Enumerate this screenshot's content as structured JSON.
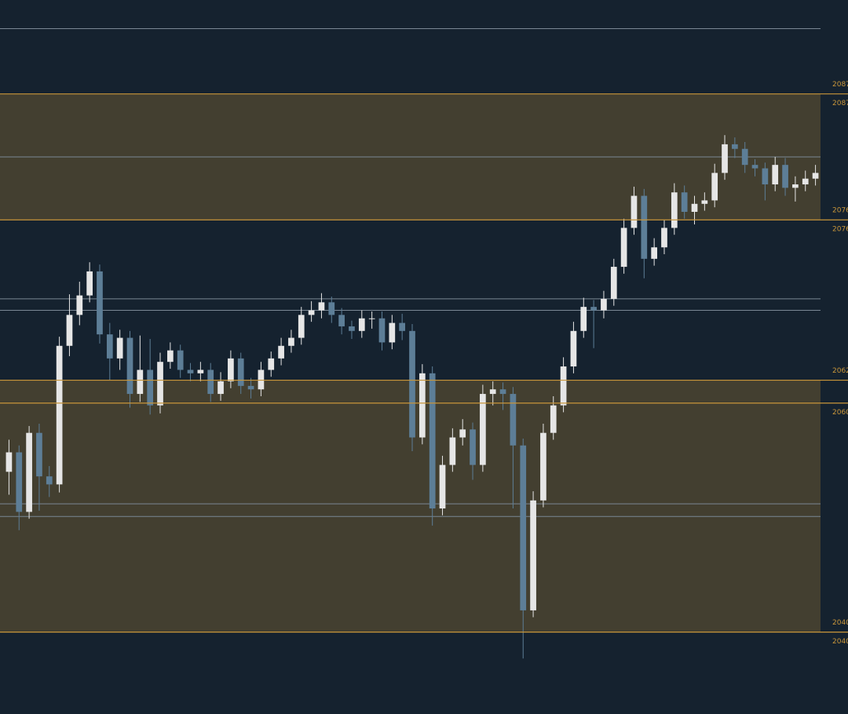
{
  "chart_data": {
    "type": "candlestick",
    "ylim": [
      2032.85,
      2095.2
    ],
    "colors": {
      "background": "#15222f",
      "up": "#e6e6e6",
      "down": "#5d7e97",
      "zone": "#433f30",
      "level": "#c9963a",
      "line": "#7b8894"
    },
    "zones": [
      {
        "top": 2087,
        "bottom": 2076
      },
      {
        "top": 2062,
        "bottom": 2040
      }
    ],
    "levels": [
      {
        "value": 2087,
        "label_sides": [
          "above",
          "below"
        ]
      },
      {
        "value": 2076,
        "label_sides": [
          "above",
          "below"
        ]
      },
      {
        "value": 2062,
        "label_sides": [
          "above"
        ]
      },
      {
        "value": 2060,
        "label_sides": [
          "below"
        ]
      },
      {
        "value": 2040,
        "label_sides": [
          "above",
          "below"
        ]
      }
    ],
    "gray_lines": [
      2092.7,
      2081.5,
      2069.1,
      2068.1,
      2051.2,
      2050.1
    ],
    "candles": {
      "open": [
        2054.0,
        2055.7,
        2050.5,
        2057.4,
        2053.6,
        2052.9,
        2065.0,
        2067.7,
        2069.4,
        2071.5,
        2066.0,
        2063.9,
        2065.7,
        2060.8,
        2062.9,
        2059.8,
        2063.6,
        2064.6,
        2062.9,
        2062.6,
        2062.9,
        2060.8,
        2061.9,
        2063.9,
        2061.5,
        2061.2,
        2062.9,
        2063.9,
        2065.0,
        2065.7,
        2067.7,
        2068.1,
        2068.8,
        2067.7,
        2066.7,
        2066.3,
        2067.4,
        2067.4,
        2065.3,
        2067.0,
        2066.3,
        2057.0,
        2062.6,
        2050.8,
        2054.6,
        2057.0,
        2057.7,
        2054.6,
        2060.8,
        2061.2,
        2060.8,
        2056.3,
        2041.9,
        2051.5,
        2057.4,
        2059.8,
        2063.2,
        2066.3,
        2068.4,
        2068.1,
        2069.1,
        2071.9,
        2075.3,
        2078.1,
        2072.6,
        2073.6,
        2075.3,
        2078.4,
        2076.7,
        2077.4,
        2077.7,
        2080.1,
        2082.6,
        2082.2,
        2080.8,
        2080.5,
        2079.1,
        2080.8,
        2078.8,
        2079.1,
        2079.6
      ],
      "high": [
        2056.8,
        2056.3,
        2058.0,
        2058.2,
        2054.5,
        2065.8,
        2069.5,
        2070.6,
        2072.3,
        2072.1,
        2067.0,
        2066.4,
        2066.3,
        2065.9,
        2065.6,
        2064.4,
        2065.3,
        2065.1,
        2063.5,
        2063.6,
        2063.5,
        2062.7,
        2064.6,
        2064.4,
        2062.2,
        2063.6,
        2064.5,
        2065.7,
        2066.4,
        2068.4,
        2068.9,
        2069.6,
        2069.3,
        2068.3,
        2067.2,
        2068.1,
        2068.0,
        2068.0,
        2067.7,
        2067.8,
        2066.9,
        2063.4,
        2063.2,
        2055.4,
        2057.8,
        2058.6,
        2058.3,
        2061.6,
        2061.9,
        2061.8,
        2061.4,
        2056.9,
        2052.3,
        2058.2,
        2060.6,
        2064.0,
        2067.1,
        2069.2,
        2069.0,
        2069.8,
        2072.6,
        2076.1,
        2078.9,
        2078.7,
        2074.4,
        2076.0,
        2079.2,
        2079.0,
        2078.1,
        2078.4,
        2080.9,
        2083.4,
        2083.2,
        2082.8,
        2081.3,
        2081.0,
        2081.5,
        2081.4,
        2079.8,
        2080.3,
        2080.8
      ],
      "low": [
        2052.0,
        2048.9,
        2049.9,
        2050.6,
        2051.8,
        2052.2,
        2064.1,
        2066.8,
        2068.8,
        2065.2,
        2062.0,
        2062.9,
        2059.6,
        2060.1,
        2059.0,
        2059.1,
        2063.0,
        2062.2,
        2061.9,
        2061.9,
        2060.1,
        2060.2,
        2061.3,
        2060.8,
        2060.4,
        2060.6,
        2062.3,
        2063.3,
        2064.4,
        2065.1,
        2067.1,
        2067.4,
        2067.0,
        2066.0,
        2065.6,
        2065.7,
        2066.5,
        2064.6,
        2064.7,
        2065.5,
        2055.8,
        2056.4,
        2049.3,
        2050.2,
        2054.0,
        2056.3,
        2053.3,
        2054.0,
        2059.8,
        2059.4,
        2050.8,
        2037.7,
        2041.3,
        2050.9,
        2056.8,
        2059.2,
        2062.6,
        2065.7,
        2064.8,
        2067.4,
        2068.5,
        2071.3,
        2074.7,
        2070.9,
        2072.0,
        2073.0,
        2074.7,
        2076.1,
        2075.6,
        2076.8,
        2077.1,
        2079.5,
        2081.4,
        2080.1,
        2079.8,
        2077.7,
        2078.5,
        2078.1,
        2077.6,
        2078.5,
        2079.0
      ],
      "close": [
        2055.7,
        2050.5,
        2057.4,
        2053.6,
        2052.9,
        2065.0,
        2067.7,
        2069.4,
        2071.5,
        2066.0,
        2063.9,
        2065.7,
        2060.8,
        2062.9,
        2059.8,
        2063.6,
        2064.6,
        2062.9,
        2062.6,
        2062.9,
        2060.8,
        2061.9,
        2063.9,
        2061.5,
        2061.2,
        2062.9,
        2063.9,
        2065.0,
        2065.7,
        2067.7,
        2068.1,
        2068.8,
        2067.7,
        2066.7,
        2066.3,
        2067.4,
        2067.4,
        2065.3,
        2067.0,
        2066.3,
        2057.0,
        2062.6,
        2050.8,
        2054.6,
        2057.0,
        2057.7,
        2054.6,
        2060.8,
        2061.2,
        2060.8,
        2056.3,
        2041.9,
        2051.5,
        2057.4,
        2059.8,
        2063.2,
        2066.3,
        2068.4,
        2068.1,
        2069.1,
        2071.9,
        2075.3,
        2078.1,
        2072.6,
        2073.6,
        2075.3,
        2078.4,
        2076.7,
        2077.4,
        2077.7,
        2080.1,
        2082.6,
        2082.2,
        2080.8,
        2080.5,
        2079.1,
        2080.8,
        2078.8,
        2079.1,
        2079.6,
        2080.1
      ]
    }
  }
}
